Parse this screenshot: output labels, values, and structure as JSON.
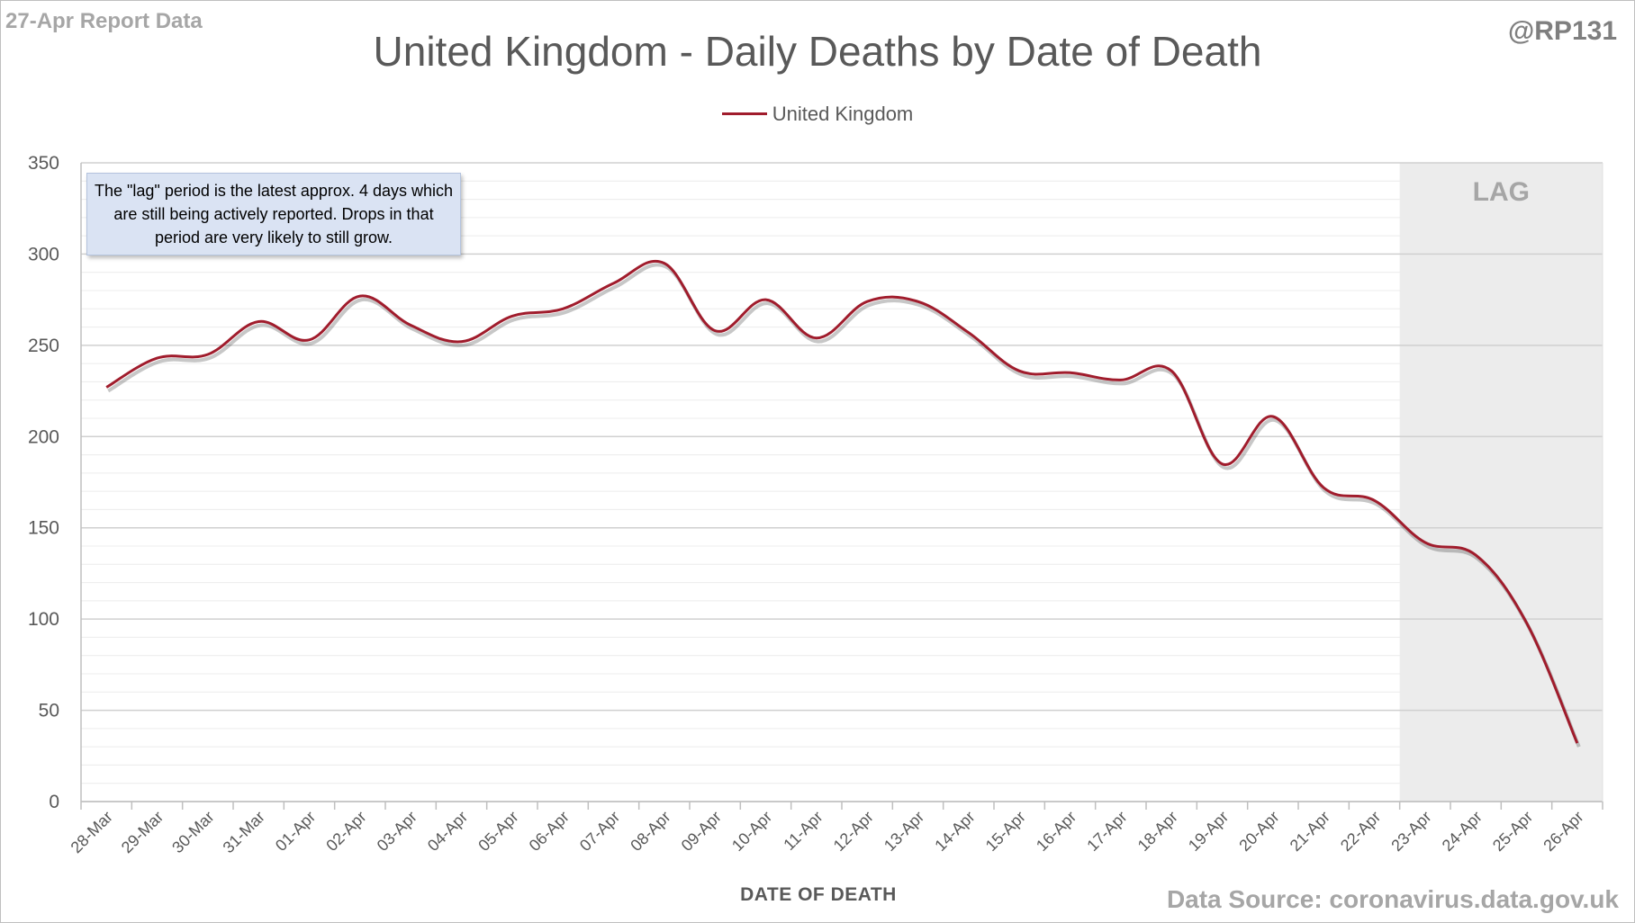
{
  "header": {
    "report_label": "27-Apr Report Data",
    "author_handle": "@RP131",
    "source_label": "Data Source: coronavirus.data.gov.uk"
  },
  "note": {
    "text": "The \"lag\" period is the latest approx. 4 days which are still being actively reported.  Drops in that period are very likely to still grow."
  },
  "lag_label": "LAG",
  "colors": {
    "series": "#a01c2c",
    "lag_shade": "#ececec",
    "grid": "#d9d9d9",
    "note_bg": "#dae3f3"
  },
  "chart_data": {
    "type": "line",
    "title": "United Kingdom - Daily Deaths by Date of Death",
    "xlabel": "DATE OF DEATH",
    "ylabel": "",
    "ylim": [
      0,
      350
    ],
    "yticks": [
      0,
      50,
      100,
      150,
      200,
      250,
      300,
      350
    ],
    "grid": "horizontal major and minor",
    "legend_position": "top-center",
    "categories": [
      "28-Mar",
      "29-Mar",
      "30-Mar",
      "31-Mar",
      "01-Apr",
      "02-Apr",
      "03-Apr",
      "04-Apr",
      "05-Apr",
      "06-Apr",
      "07-Apr",
      "08-Apr",
      "09-Apr",
      "10-Apr",
      "11-Apr",
      "12-Apr",
      "13-Apr",
      "14-Apr",
      "15-Apr",
      "16-Apr",
      "17-Apr",
      "18-Apr",
      "19-Apr",
      "20-Apr",
      "21-Apr",
      "22-Apr",
      "23-Apr",
      "24-Apr",
      "25-Apr",
      "26-Apr"
    ],
    "series": [
      {
        "name": "United Kingdom",
        "values": [
          227,
          243,
          245,
          263,
          253,
          277,
          261,
          252,
          266,
          270,
          284,
          295,
          258,
          275,
          254,
          274,
          274,
          257,
          236,
          235,
          231,
          236,
          185,
          211,
          172,
          165,
          142,
          135,
          98,
          32
        ]
      }
    ],
    "lag_period": [
      "23-Apr",
      "26-Apr"
    ]
  }
}
